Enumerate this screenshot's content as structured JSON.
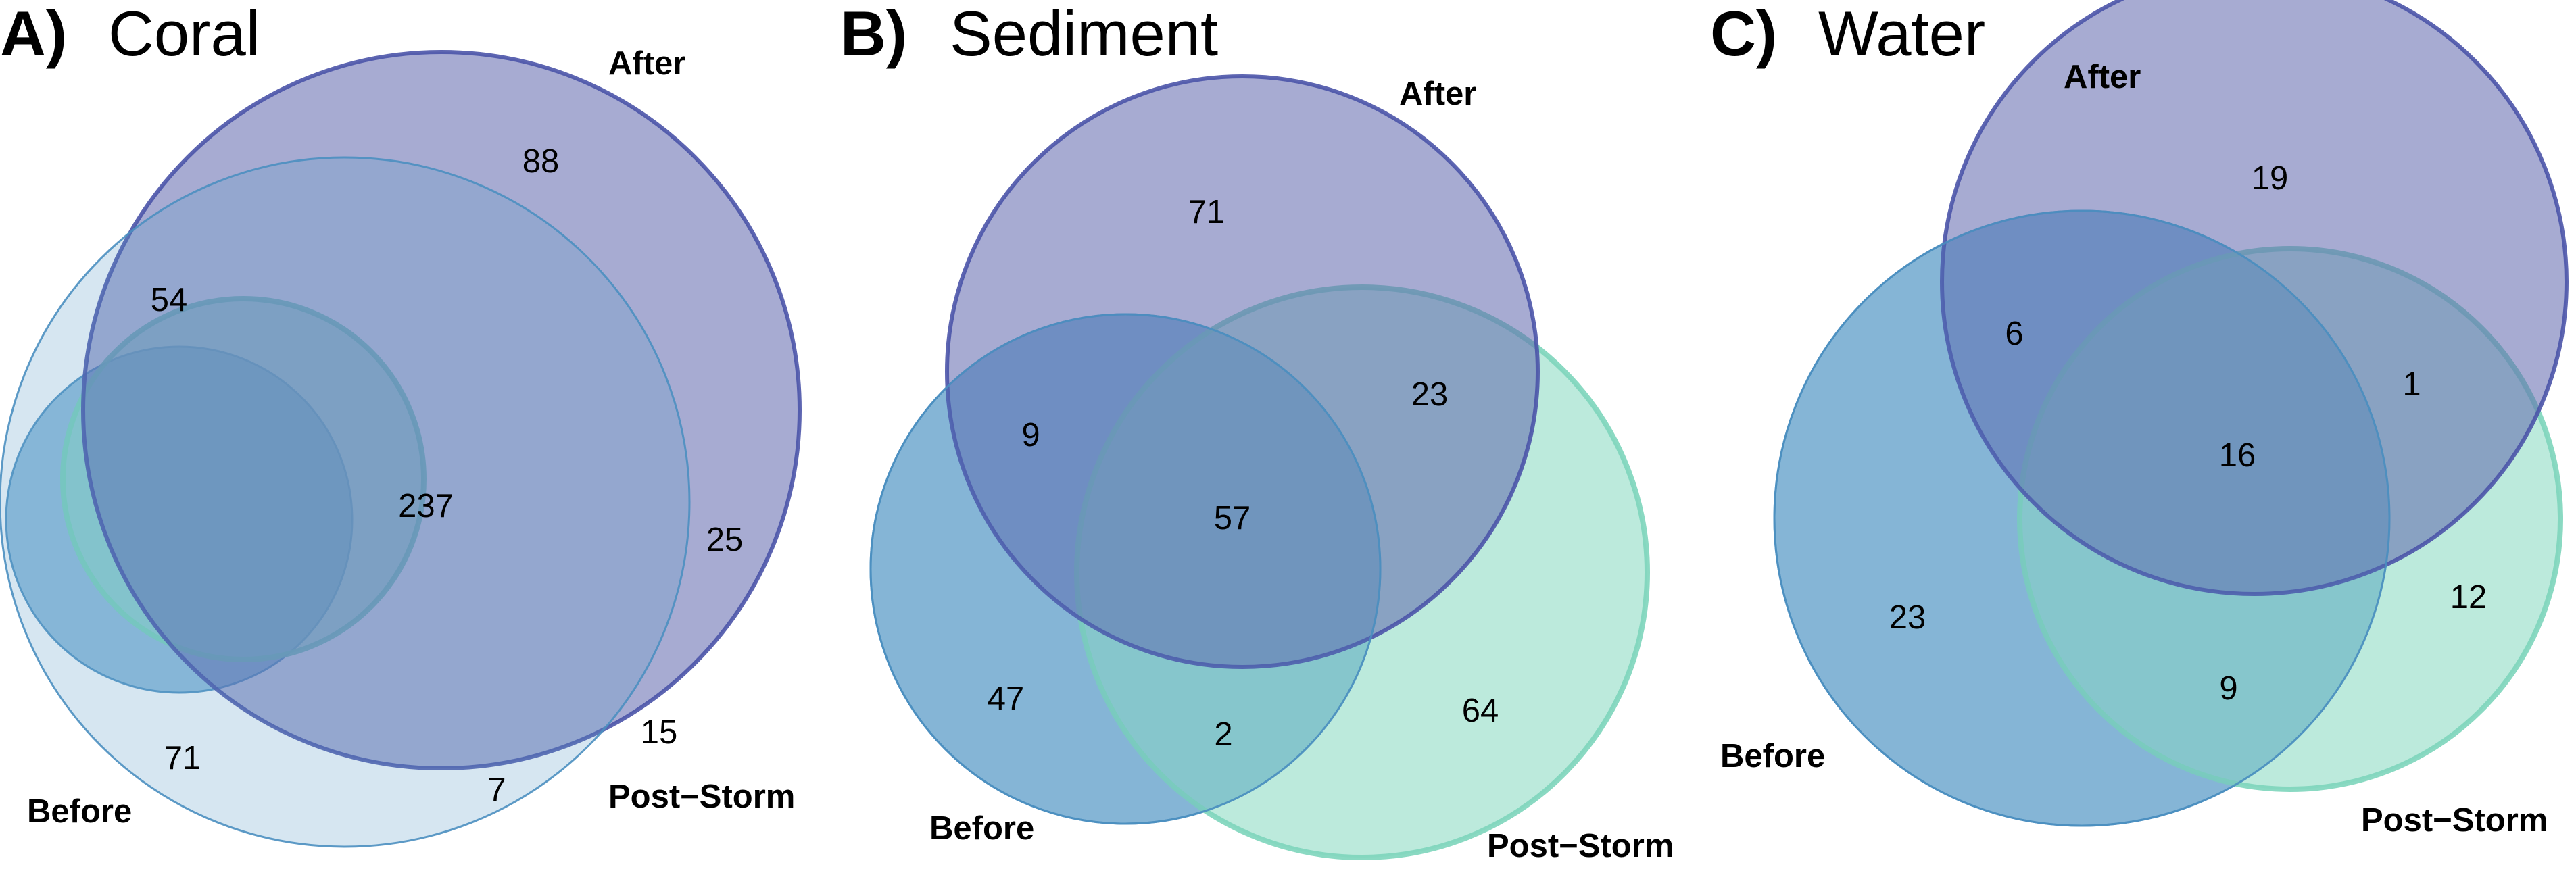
{
  "colors": {
    "before": "#5b9dc9",
    "after": "#5f66ad",
    "post_storm": "#8fdcc4",
    "before_stroke": "#4b8fc0",
    "after_stroke": "#4b54a8",
    "post_storm_stroke": "#7dd5bb"
  },
  "panels": [
    {
      "letter": "A)",
      "title": "Coral",
      "sets": {
        "before": "Before",
        "after": "After",
        "post_storm": "Post−Storm"
      },
      "counts": {
        "after_only": "88",
        "before_after": "54",
        "all_three": "237",
        "after_post_storm": "25",
        "before_only": "71",
        "post_storm_only": "15",
        "before_post_storm": "7"
      }
    },
    {
      "letter": "B)",
      "title": "Sediment",
      "sets": {
        "before": "Before",
        "after": "After",
        "post_storm": "Post−Storm"
      },
      "counts": {
        "after_only": "71",
        "before_after": "9",
        "all_three": "57",
        "after_post_storm": "23",
        "before_only": "47",
        "before_post_storm": "2",
        "post_storm_only": "64"
      }
    },
    {
      "letter": "C)",
      "title": "Water",
      "sets": {
        "before": "Before",
        "after": "After",
        "post_storm": "Post−Storm"
      },
      "counts": {
        "after_only": "19",
        "before_after": "6",
        "after_post_storm": "1",
        "all_three": "16",
        "before_only": "23",
        "post_storm_only": "12",
        "before_post_storm": "9"
      }
    }
  ]
}
